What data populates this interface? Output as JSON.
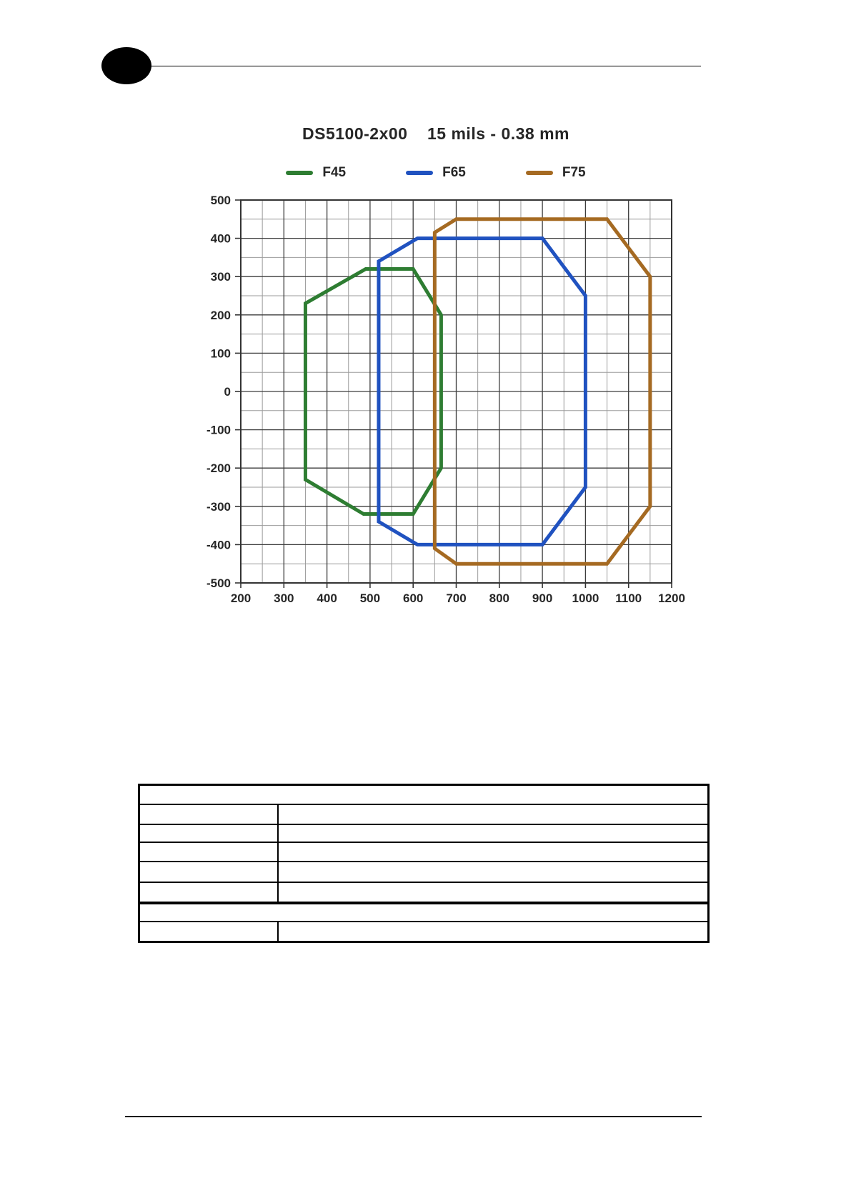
{
  "header": {
    "logo": "filled-ellipse-logo"
  },
  "chart_data": {
    "type": "line",
    "title": "DS5100-2x00    15 mils - 0.38 mm",
    "xlabel": "",
    "ylabel": "",
    "xlim": [
      200,
      1200
    ],
    "ylim": [
      -500,
      500
    ],
    "x_ticks": [
      200,
      300,
      400,
      500,
      600,
      700,
      800,
      900,
      1000,
      1100,
      1200
    ],
    "y_ticks": [
      500,
      400,
      300,
      200,
      100,
      0,
      -100,
      -200,
      -300,
      -400,
      -500
    ],
    "minor_step": 50,
    "grid": true,
    "legend_position": "top-center",
    "series": [
      {
        "name": "F45",
        "color": "#2e7d32",
        "closed": true,
        "points": [
          [
            350,
            230
          ],
          [
            490,
            320
          ],
          [
            600,
            320
          ],
          [
            665,
            200
          ],
          [
            665,
            -200
          ],
          [
            600,
            -320
          ],
          [
            485,
            -320
          ],
          [
            350,
            -230
          ]
        ]
      },
      {
        "name": "F65",
        "color": "#2052c0",
        "closed": true,
        "points": [
          [
            520,
            340
          ],
          [
            610,
            400
          ],
          [
            900,
            400
          ],
          [
            1000,
            250
          ],
          [
            1000,
            -250
          ],
          [
            900,
            -400
          ],
          [
            610,
            -400
          ],
          [
            520,
            -340
          ]
        ]
      },
      {
        "name": "F75",
        "color": "#a56a22",
        "closed": true,
        "points": [
          [
            650,
            415
          ],
          [
            700,
            450
          ],
          [
            1050,
            450
          ],
          [
            1150,
            300
          ],
          [
            1150,
            -300
          ],
          [
            1050,
            -450
          ],
          [
            700,
            -450
          ],
          [
            650,
            -410
          ]
        ]
      }
    ],
    "style": {
      "major_grid_color": "#3c3c3c",
      "minor_grid_color": "#9b9b9b",
      "axis_color": "#333333",
      "line_width": 5
    }
  },
  "table": {
    "columns": 2,
    "rows": [
      {
        "span": "full",
        "thick_top": false,
        "cells": [
          ""
        ]
      },
      {
        "span": "split",
        "thick_top": false,
        "cells": [
          "",
          ""
        ]
      },
      {
        "span": "split",
        "thick_top": false,
        "cells": [
          "",
          ""
        ]
      },
      {
        "span": "split",
        "thick_top": false,
        "cells": [
          "",
          ""
        ]
      },
      {
        "span": "split",
        "thick_top": false,
        "cells": [
          "",
          ""
        ]
      },
      {
        "span": "split",
        "thick_top": false,
        "cells": [
          "",
          ""
        ]
      },
      {
        "span": "full",
        "thick_top": true,
        "cells": [
          ""
        ]
      },
      {
        "span": "split",
        "thick_top": false,
        "cells": [
          "",
          ""
        ]
      }
    ]
  }
}
